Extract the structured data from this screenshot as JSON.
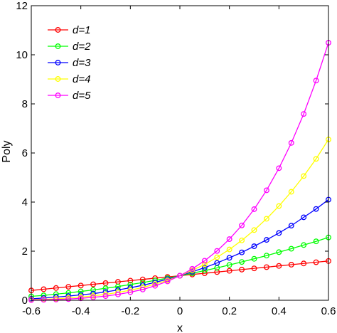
{
  "chart_data": {
    "type": "line",
    "title": "",
    "xlabel": "x",
    "ylabel": "Poly",
    "xlim": [
      -0.6,
      0.6
    ],
    "ylim": [
      0,
      12
    ],
    "xticks": [
      "-0.6",
      "-0.4",
      "-0.2",
      "0",
      "0.2",
      "0.4",
      "0.6"
    ],
    "yticks": [
      "0",
      "2",
      "4",
      "6",
      "8",
      "10",
      "12"
    ],
    "grid": false,
    "legend_position": "top-left",
    "x": [
      -0.6,
      -0.55,
      -0.5,
      -0.45,
      -0.4,
      -0.35,
      -0.3,
      -0.25,
      -0.2,
      -0.15,
      -0.1,
      -0.05,
      0,
      0.05,
      0.1,
      0.15,
      0.2,
      0.25,
      0.3,
      0.35,
      0.4,
      0.45,
      0.5,
      0.55,
      0.6
    ],
    "series": [
      {
        "name": "d=1",
        "color": "#ff0000",
        "values": [
          0.4,
          0.45,
          0.5,
          0.55,
          0.6,
          0.65,
          0.7,
          0.75,
          0.8,
          0.85,
          0.9,
          0.95,
          1.0,
          1.05,
          1.1,
          1.15,
          1.2,
          1.25,
          1.3,
          1.35,
          1.4,
          1.45,
          1.5,
          1.55,
          1.6
        ]
      },
      {
        "name": "d=2",
        "color": "#00ff00",
        "values": [
          0.16,
          0.2,
          0.25,
          0.3,
          0.36,
          0.42,
          0.49,
          0.56,
          0.64,
          0.72,
          0.81,
          0.9,
          1.0,
          1.1,
          1.21,
          1.32,
          1.44,
          1.56,
          1.69,
          1.82,
          1.96,
          2.1,
          2.25,
          2.4,
          2.56
        ]
      },
      {
        "name": "d=3",
        "color": "#0000ff",
        "values": [
          0.06,
          0.09,
          0.13,
          0.17,
          0.22,
          0.27,
          0.34,
          0.42,
          0.51,
          0.61,
          0.73,
          0.86,
          1.0,
          1.16,
          1.33,
          1.52,
          1.73,
          1.95,
          2.2,
          2.46,
          2.74,
          3.04,
          3.38,
          3.72,
          4.1
        ]
      },
      {
        "name": "d=4",
        "color": "#ffff00",
        "values": [
          0.03,
          0.04,
          0.06,
          0.09,
          0.13,
          0.18,
          0.24,
          0.32,
          0.41,
          0.52,
          0.66,
          0.81,
          1.0,
          1.22,
          1.46,
          1.75,
          2.07,
          2.44,
          2.86,
          3.32,
          3.84,
          4.42,
          5.06,
          5.76,
          6.55
        ]
      },
      {
        "name": "d=5",
        "color": "#ff00ff",
        "values": [
          0.01,
          0.02,
          0.03,
          0.05,
          0.08,
          0.12,
          0.17,
          0.24,
          0.33,
          0.44,
          0.59,
          0.77,
          1.0,
          1.28,
          1.61,
          2.01,
          2.49,
          3.05,
          3.71,
          4.48,
          5.38,
          6.41,
          7.59,
          8.95,
          10.49
        ]
      }
    ]
  }
}
